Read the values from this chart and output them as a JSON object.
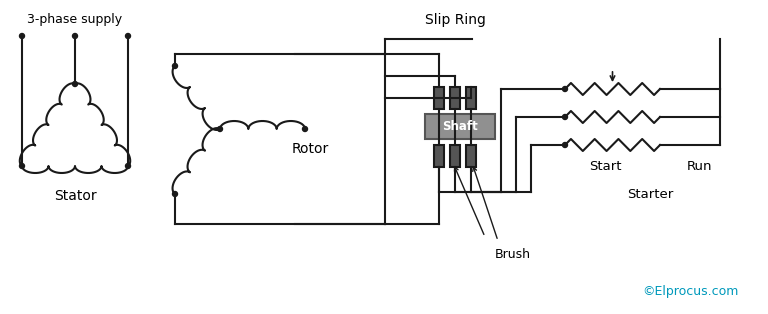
{
  "bg_color": "#ffffff",
  "line_color": "#1a1a1a",
  "dark_gray": "#555555",
  "shaft_gray": "#909090",
  "text_color": "#000000",
  "cyan_color": "#0099bb",
  "labels": {
    "supply": "3-phase supply",
    "stator": "Stator",
    "slip_ring": "Slip Ring",
    "rotor": "Rotor",
    "shaft": "Shaft",
    "brush": "Brush",
    "start": "Start",
    "run": "Run",
    "starter": "Starter",
    "copyright": "©Elprocus.com"
  },
  "figsize": [
    7.68,
    3.14
  ],
  "dpi": 100
}
